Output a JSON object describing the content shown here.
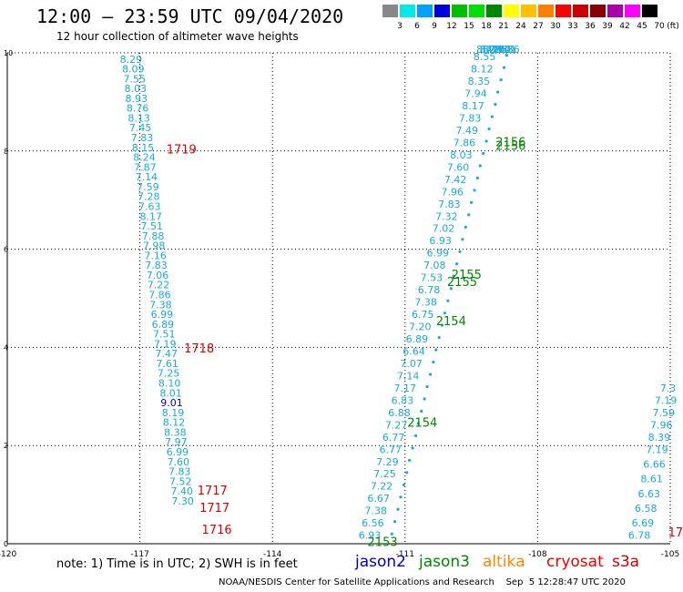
{
  "header": {
    "title": "12:00 — 23:59 UTC 09/04/2020",
    "subtitle": "12 hour collection of altimeter wave heights"
  },
  "color_legend": {
    "unit": "(ft)",
    "bins": [
      {
        "label": "3",
        "color": "#888888"
      },
      {
        "label": "6",
        "color": "#00e8e8"
      },
      {
        "label": "9",
        "color": "#00a0ff"
      },
      {
        "label": "12",
        "color": "#0000e0"
      },
      {
        "label": "15",
        "color": "#00c000"
      },
      {
        "label": "18",
        "color": "#00e000"
      },
      {
        "label": "21",
        "color": "#008800"
      },
      {
        "label": "24",
        "color": "#ffff00"
      },
      {
        "label": "27",
        "color": "#ffc000"
      },
      {
        "label": "30",
        "color": "#ff8000"
      },
      {
        "label": "33",
        "color": "#ff0000"
      },
      {
        "label": "36",
        "color": "#cc0000"
      },
      {
        "label": "39",
        "color": "#880000"
      },
      {
        "label": "42",
        "color": "#aa00aa"
      },
      {
        "label": "45",
        "color": "#ff00ff"
      },
      {
        "label": "70",
        "color": "#000000"
      }
    ]
  },
  "footer": {
    "note": "note:  1) Time is in UTC;  2) SWH is in feet",
    "satellites": [
      {
        "name": "jason2",
        "color": "#0000cc"
      },
      {
        "name": "jason3",
        "color": "#008800"
      },
      {
        "name": "altika",
        "color": "#ff8800"
      },
      {
        "name": "cryosat",
        "color": "#ee0000"
      },
      {
        "name": "s3a",
        "color": "#cc0000"
      }
    ],
    "credit": "NOAA/NESDIS Center for Satellite Applications and Research    Sep  5 12:28:47 UTC 2020"
  },
  "chart_data": {
    "type": "scatter",
    "xlim": [
      -120,
      -105
    ],
    "ylim": [
      0,
      10
    ],
    "x_ticks": [
      "-120",
      "-117",
      "-114",
      "-111",
      "-108",
      "-105"
    ],
    "y_ticks": [
      "0",
      "2",
      "4",
      "6",
      "8",
      "10"
    ],
    "grid": true,
    "series": [
      {
        "name": "cryosat",
        "color": "#1aa8e0",
        "x": [
          -117.2,
          -117.15,
          -117.12,
          -117.1,
          -117.08,
          -117.05,
          -117.02,
          -116.99,
          -116.95,
          -116.93,
          -116.9,
          -116.88,
          -116.85,
          -116.82,
          -116.8,
          -116.78,
          -116.75,
          -116.73,
          -116.7,
          -116.68,
          -116.65,
          -116.63,
          -116.6,
          -116.58,
          -116.55,
          -116.53,
          -116.5,
          -116.48,
          -116.45,
          -116.43,
          -116.4,
          -116.38,
          -116.35,
          -116.33,
          -116.3,
          -116.28,
          -116.25,
          -116.23,
          -116.2,
          -116.18,
          -116.15,
          -116.13,
          -116.1,
          -116.08,
          -116.05,
          -116.03
        ],
        "y": [
          9.8,
          9.6,
          9.4,
          9.2,
          9.0,
          8.8,
          8.6,
          8.4,
          8.2,
          8.0,
          7.8,
          7.6,
          7.4,
          7.2,
          7.0,
          6.8,
          6.6,
          6.4,
          6.2,
          6.0,
          5.8,
          5.6,
          5.4,
          5.2,
          5.0,
          4.8,
          4.6,
          4.4,
          4.2,
          4.0,
          3.8,
          3.6,
          3.4,
          3.2,
          3.0,
          2.8,
          2.6,
          2.4,
          2.2,
          2.0,
          1.8,
          1.6,
          1.4,
          1.2,
          1.0,
          0.8
        ],
        "values": [
          "8.29",
          "8.09",
          "7.55",
          "8.03",
          "8.93",
          "8.76",
          "8.13",
          "7.45",
          "7.83",
          "8.15",
          "8.24",
          "7.87",
          "7.14",
          "7.59",
          "7.28",
          "7.63",
          "8.17",
          "7.51",
          "7.88",
          "7.98",
          "7.16",
          "7.83",
          "7.06",
          "7.22",
          "7.86",
          "7.38",
          "6.99",
          "6.89",
          "7.51",
          "7.19",
          "7.47",
          "7.61",
          "7.25",
          "8.10",
          "8.01",
          "9.01",
          "8.19",
          "8.12",
          "8.38",
          "7.97",
          "6.99",
          "7.60",
          "7.83",
          "7.52",
          "7.40",
          "7.30"
        ]
      },
      {
        "name": "jason3",
        "color": "#1aa8e0",
        "x": [
          -111.8,
          -111.73,
          -111.66,
          -111.6,
          -111.53,
          -111.46,
          -111.4,
          -111.33,
          -111.26,
          -111.2,
          -111.13,
          -111.06,
          -111.0,
          -110.93,
          -110.86,
          -110.8,
          -110.73,
          -110.66,
          -110.6,
          -110.53,
          -110.46,
          -110.4,
          -110.33,
          -110.26,
          -110.2,
          -110.13,
          -110.06,
          -110.0,
          -109.93,
          -109.86,
          -109.8,
          -109.73,
          -109.66,
          -109.6,
          -109.53,
          -109.46,
          -109.4,
          -109.33,
          -109.26,
          -109.2,
          -109.13,
          -109.06,
          -109.0,
          -108.93,
          -108.86,
          -108.8,
          -108.73,
          -108.66
        ],
        "y": [
          0.1,
          0.35,
          0.6,
          0.85,
          1.1,
          1.35,
          1.6,
          1.85,
          2.1,
          2.35,
          2.6,
          2.85,
          3.1,
          3.35,
          3.6,
          3.85,
          4.1,
          4.35,
          4.6,
          4.85,
          5.1,
          5.35,
          5.6,
          5.85,
          6.1,
          6.35,
          6.6,
          6.85,
          7.1,
          7.35,
          7.6,
          7.85,
          8.1,
          8.35,
          8.6,
          8.85,
          9.1,
          9.35,
          9.6,
          9.85,
          10.0,
          10.0,
          10.0,
          10.0,
          10.0,
          10.0,
          10.0,
          10.0
        ],
        "values": [
          "6.93",
          "6.56",
          "7.38",
          "6.67",
          "7.22",
          "7.25",
          "7.29",
          "6.77",
          "6.77",
          "7.27",
          "6.88",
          "6.83",
          "7.17",
          "7.14",
          "7.07",
          "6.64",
          "6.89",
          "7.20",
          "6.75",
          "7.38",
          "6.78",
          "7.53",
          "7.08",
          "6.99",
          "6.93",
          "7.02",
          "7.32",
          "7.83",
          "7.96",
          "7.42",
          "7.60",
          "8.03",
          "7.86",
          "7.49",
          "7.83",
          "8.17",
          "7.94",
          "8.35",
          "8.12",
          "8.55",
          "8.42",
          "8.29",
          "8.10",
          "7.88",
          "7.70",
          "7.58",
          "7.41",
          "7.36"
        ]
      },
      {
        "name": "jason3-b",
        "color": "#1aa8e0",
        "x": [
          -111.3,
          -111.23,
          -111.16,
          -111.1,
          -111.03,
          -110.96,
          -110.9,
          -110.83,
          -110.76,
          -110.7,
          -110.63,
          -110.56,
          -110.5,
          -110.43,
          -110.36,
          -110.3,
          -110.23,
          -110.16,
          -110.1,
          -110.03,
          -109.96,
          -109.9,
          -109.83,
          -109.76,
          -109.7,
          -109.63,
          -109.56,
          -109.5,
          -109.43,
          -109.36,
          -109.3,
          -109.23,
          -109.16,
          -109.1,
          -109.03,
          -108.96,
          -108.9,
          -108.83,
          -108.76,
          -108.7
        ],
        "y": [
          0.2,
          0.45,
          0.7,
          0.95,
          1.2,
          1.45,
          1.7,
          1.95,
          2.2,
          2.45,
          2.7,
          2.95,
          3.2,
          3.45,
          3.7,
          3.95,
          4.2,
          4.45,
          4.7,
          4.95,
          5.2,
          5.45,
          5.7,
          5.95,
          6.2,
          6.45,
          6.7,
          6.95,
          7.2,
          7.45,
          7.7,
          7.95,
          8.2,
          8.45,
          8.7,
          8.95,
          9.2,
          9.45,
          9.7,
          9.95
        ],
        "values": [
          "",
          "",
          "",
          "",
          "",
          "",
          "",
          "",
          "",
          "",
          "",
          "",
          "",
          "",
          "",
          "",
          "",
          "",
          "",
          "",
          "",
          "",
          "",
          "",
          "",
          "",
          "",
          "",
          "",
          "",
          "",
          "",
          "",
          "",
          "",
          "",
          "",
          "",
          "",
          ""
        ]
      },
      {
        "name": "s3a",
        "color": "#1aa8e0",
        "x": [
          -105.7,
          -105.62,
          -105.55,
          -105.48,
          -105.42,
          -105.36,
          -105.3,
          -105.25,
          -105.2,
          -105.15,
          -105.1,
          -105.05
        ],
        "y": [
          0.1,
          0.35,
          0.65,
          0.95,
          1.25,
          1.55,
          1.85,
          2.1,
          2.35,
          2.6,
          2.85,
          3.1
        ],
        "values": [
          "6.78",
          "6.69",
          "6.58",
          "6.63",
          "8.61",
          "6.66",
          "7.19",
          "8.39",
          "7.96",
          "7.59",
          "7.19",
          "7.3"
        ]
      }
    ],
    "pass_labels": [
      {
        "text": "1719",
        "x": -116.4,
        "y": 7.95,
        "color": "#dd0000"
      },
      {
        "text": "1718",
        "x": -116.0,
        "y": 3.9,
        "color": "#dd0000"
      },
      {
        "text": "1717",
        "x": -115.7,
        "y": 1.0,
        "color": "#dd0000"
      },
      {
        "text": "1717",
        "x": -115.65,
        "y": 0.65,
        "color": "#dd0000"
      },
      {
        "text": "1716",
        "x": -115.6,
        "y": 0.2,
        "color": "#dd0000"
      },
      {
        "text": "2156",
        "x": -108.95,
        "y": 8.1,
        "color": "#008800"
      },
      {
        "text": "2156",
        "x": -108.95,
        "y": 8.02,
        "color": "#008800"
      },
      {
        "text": "2155",
        "x": -109.95,
        "y": 5.4,
        "color": "#008800"
      },
      {
        "text": "2155",
        "x": -110.05,
        "y": 5.25,
        "color": "#008800"
      },
      {
        "text": "2154",
        "x": -110.3,
        "y": 4.45,
        "color": "#008800"
      },
      {
        "text": "2154",
        "x": -110.95,
        "y": 2.38,
        "color": "#008800"
      },
      {
        "text": "2153",
        "x": -111.85,
        "y": -0.05,
        "color": "#008800"
      },
      {
        "text": "17",
        "x": -105.05,
        "y": 0.15,
        "color": "#dd0000"
      }
    ]
  }
}
